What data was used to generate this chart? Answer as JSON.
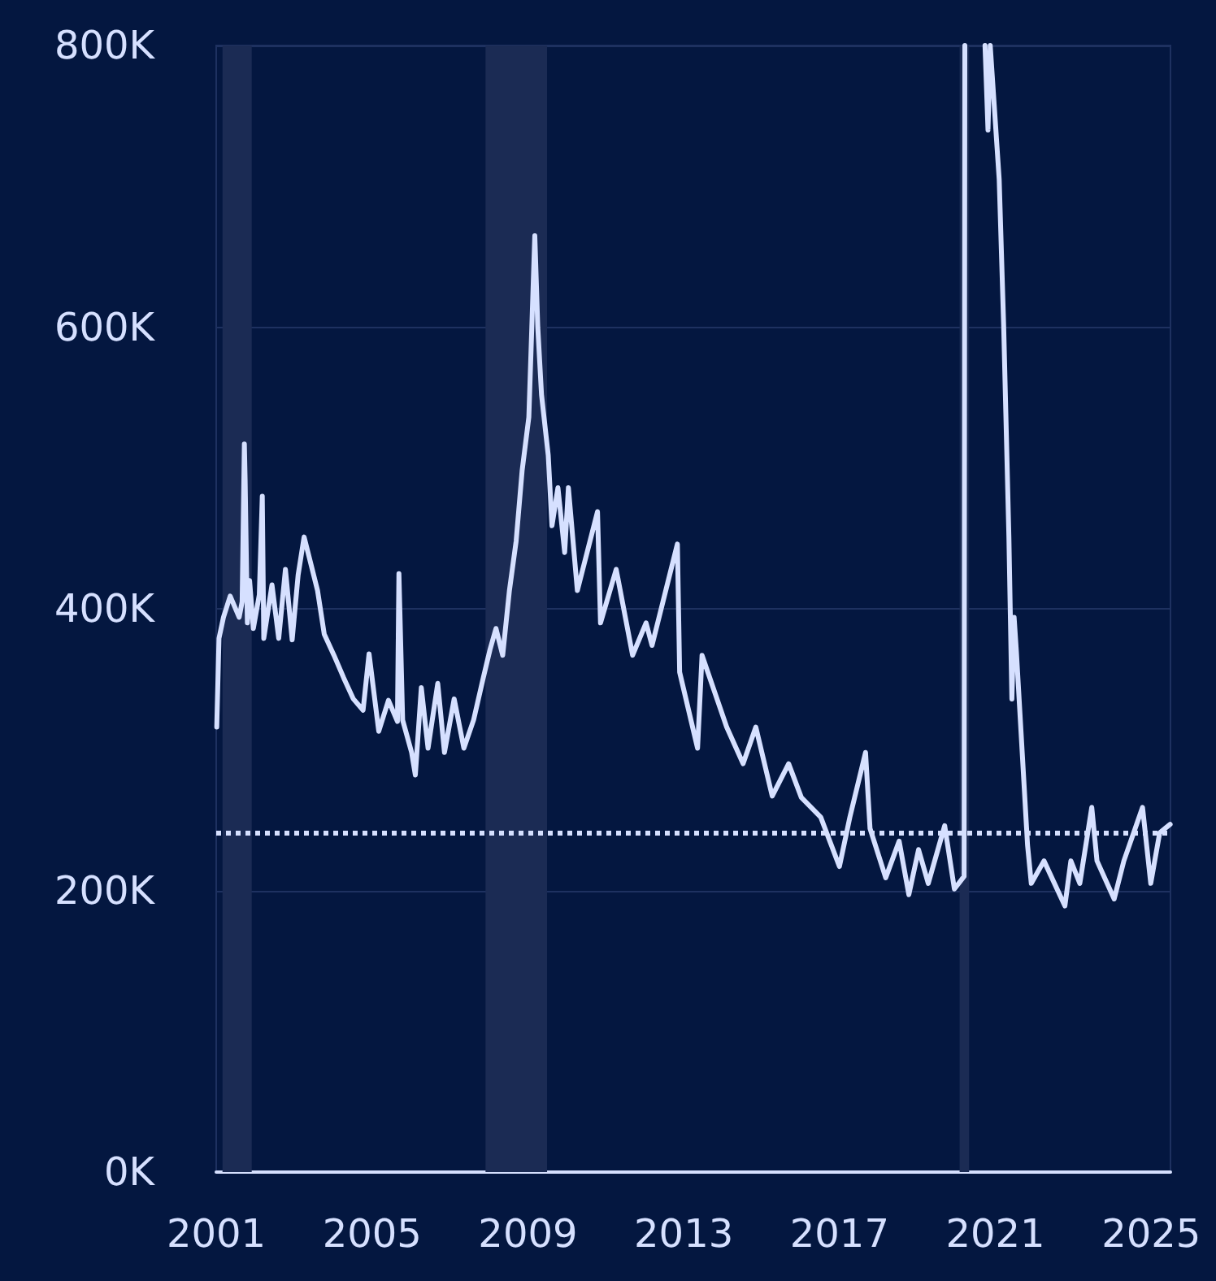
{
  "chart_data": {
    "type": "line",
    "color": "#d6e0ff",
    "line_style": "solid",
    "marker": "none",
    "grid": "y",
    "xlim": [
      "2001-01-01",
      "2025-07-01"
    ],
    "xticks": [
      {
        "value": "2001-01-01",
        "label": "2001"
      },
      {
        "value": "2005-01-01",
        "label": "2005"
      },
      {
        "value": "2009-01-01",
        "label": "2009"
      },
      {
        "value": "2013-01-01",
        "label": "2013"
      },
      {
        "value": "2017-01-01",
        "label": "2017"
      },
      {
        "value": "2021-01-01",
        "label": "2021"
      },
      {
        "value": "2025-01-01",
        "label": "2025"
      }
    ],
    "ylim": [
      0,
      800000
    ],
    "yticks": [
      {
        "value": 0,
        "label": "0K"
      },
      {
        "value": 200000,
        "label": "200K"
      },
      {
        "value": 400000,
        "label": "400K"
      },
      {
        "value": 600000,
        "label": "600K"
      },
      {
        "value": 800000,
        "label": "800K"
      }
    ],
    "ref_lines": [
      {
        "axis": "y",
        "value": 241000,
        "color": "#d6e0ff",
        "line_style": "dotted"
      }
    ],
    "bands": [
      {
        "axis": "x",
        "from": "2001-03-01",
        "to": "2001-11-30",
        "color": "#1b2b54"
      },
      {
        "axis": "x",
        "from": "2007-12-01",
        "to": "2009-06-30",
        "color": "#1b2b54"
      },
      {
        "axis": "x",
        "from": "2020-02-01",
        "to": "2020-04-30",
        "color": "#1b2b54"
      }
    ],
    "x": [
      "2001-01-06",
      "2001-01-27",
      "2001-03-10",
      "2001-05-12",
      "2001-08-04",
      "2001-09-01",
      "2001-09-22",
      "2001-09-29",
      "2001-10-20",
      "2001-11-10",
      "2001-12-15",
      "2002-02-09",
      "2002-03-09",
      "2002-03-23",
      "2002-06-08",
      "2002-08-10",
      "2002-10-12",
      "2002-12-14",
      "2003-02-08",
      "2003-04-05",
      "2003-06-07",
      "2003-08-09",
      "2003-10-11",
      "2004-01-10",
      "2004-04-10",
      "2004-07-10",
      "2004-10-09",
      "2004-12-04",
      "2005-03-05",
      "2005-06-04",
      "2005-08-27",
      "2005-09-10",
      "2005-10-15",
      "2006-01-07",
      "2006-02-11",
      "2006-04-08",
      "2006-06-10",
      "2006-09-09",
      "2006-11-11",
      "2007-02-10",
      "2007-05-12",
      "2007-08-11",
      "2007-11-10",
      "2008-01-12",
      "2008-03-08",
      "2008-05-10",
      "2008-07-12",
      "2008-09-13",
      "2008-11-08",
      "2009-01-10",
      "2009-02-07",
      "2009-03-07",
      "2009-04-04",
      "2009-05-09",
      "2009-07-11",
      "2009-08-15",
      "2009-10-10",
      "2009-12-12",
      "2010-01-16",
      "2010-04-10",
      "2010-10-16",
      "2010-11-13",
      "2011-04-09",
      "2011-09-10",
      "2012-01-14",
      "2012-03-10",
      "2012-11-03",
      "2012-11-24",
      "2013-05-11",
      "2013-06-22",
      "2014-02-08",
      "2014-07-12",
      "2014-11-08",
      "2015-04-11",
      "2015-09-12",
      "2016-01-09",
      "2016-07-09",
      "2016-12-31",
      "2017-04-08",
      "2017-09-02",
      "2017-10-14",
      "2018-03-10",
      "2018-07-14",
      "2018-10-13",
      "2019-01-12",
      "2019-04-13",
      "2019-09-14",
      "2019-12-14",
      "2020-03-14",
      "2020-03-21",
      "2020-06-15",
      "2020-09-26",
      "2020-10-24",
      "2020-11-14",
      "2021-02-06",
      "2021-03-20",
      "2021-05-08",
      "2021-06-05",
      "2021-06-26",
      "2021-07-17",
      "2021-10-30",
      "2021-12-04",
      "2022-04-02",
      "2022-10-15",
      "2022-12-10",
      "2023-03-04",
      "2023-06-24",
      "2023-08-12",
      "2024-01-20",
      "2024-04-20",
      "2024-10-12",
      "2024-12-28",
      "2025-03-22",
      "2025-06-28"
    ],
    "values": [
      316000,
      379000,
      394000,
      409000,
      394000,
      405000,
      517000,
      492000,
      390000,
      420000,
      386000,
      410000,
      480000,
      379000,
      417000,
      379000,
      428000,
      378000,
      424000,
      451000,
      432000,
      413000,
      382000,
      367000,
      351000,
      336000,
      328000,
      368000,
      313000,
      335000,
      320000,
      425000,
      321000,
      298000,
      282000,
      344000,
      301000,
      347000,
      298000,
      336000,
      301000,
      321000,
      351000,
      371000,
      386000,
      367000,
      413000,
      448000,
      498000,
      536000,
      600000,
      665000,
      600000,
      552000,
      509000,
      459000,
      486000,
      440000,
      486000,
      413000,
      469000,
      390000,
      428000,
      367000,
      390000,
      374000,
      446000,
      355000,
      301000,
      367000,
      316000,
      290000,
      316000,
      267000,
      290000,
      266000,
      252000,
      217000,
      252000,
      298000,
      244000,
      209000,
      235000,
      197000,
      229000,
      205000,
      246000,
      201000,
      210000,
      800000,
      null,
      800000,
      740000,
      800000,
      705000,
      601000,
      451000,
      336000,
      394000,
      370000,
      232000,
      205000,
      221000,
      189000,
      221000,
      205000,
      259000,
      221000,
      194000,
      221000,
      259000,
      205000,
      241000,
      247000
    ]
  }
}
